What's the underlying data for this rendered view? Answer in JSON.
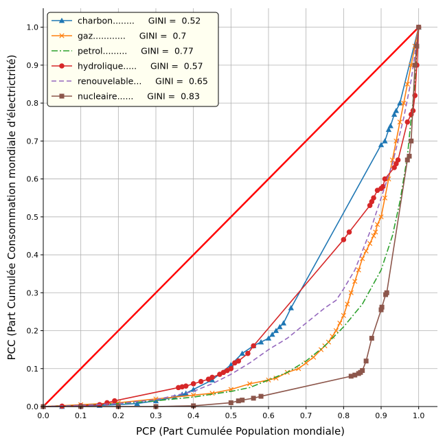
{
  "chart_data": {
    "type": "line",
    "title": "",
    "xlabel": "PCP (Part Cumulée Population mondiale)",
    "ylabel": "PCC (Part Cumulée Consommation mondiale d'électrictrité)",
    "xlim": [
      0.0,
      1.05
    ],
    "ylim": [
      0.0,
      1.05
    ],
    "xticks": [
      "0.0",
      "0.1",
      "0.2",
      "0.3",
      "0.4",
      "0.5",
      "0.6",
      "0.7",
      "0.8",
      "0.9",
      "1.0"
    ],
    "yticks": [
      "0.0",
      "0.1",
      "0.2",
      "0.3",
      "0.4",
      "0.5",
      "0.6",
      "0.7",
      "0.8",
      "0.9",
      "1.0"
    ],
    "grid": true,
    "legend_position": "top-left",
    "equality_line": {
      "x": [
        0.0,
        1.0
      ],
      "y": [
        0.0,
        1.0
      ],
      "color": "#ff0000"
    },
    "series": [
      {
        "name": "charbon........     GINI =  0.52",
        "color": "#1f77b4",
        "marker": "triangle",
        "dash": "",
        "x": [
          0.0,
          0.05,
          0.1,
          0.15,
          0.2,
          0.25,
          0.3,
          0.35,
          0.37,
          0.38,
          0.4,
          0.45,
          0.5,
          0.53,
          0.56,
          0.58,
          0.6,
          0.61,
          0.62,
          0.63,
          0.64,
          0.66,
          0.9,
          0.91,
          0.92,
          0.925,
          0.935,
          0.94,
          0.95,
          1.0
        ],
        "y": [
          0.0,
          0.0,
          0.002,
          0.003,
          0.005,
          0.008,
          0.015,
          0.025,
          0.032,
          0.035,
          0.045,
          0.07,
          0.11,
          0.14,
          0.16,
          0.17,
          0.18,
          0.19,
          0.2,
          0.21,
          0.22,
          0.26,
          0.69,
          0.7,
          0.73,
          0.74,
          0.77,
          0.78,
          0.8,
          1.0
        ]
      },
      {
        "name": "gaz............     GINI =  0.7",
        "color": "#ff7f0e",
        "marker": "x",
        "dash": "",
        "x": [
          0.0,
          0.1,
          0.2,
          0.3,
          0.4,
          0.45,
          0.5,
          0.55,
          0.6,
          0.62,
          0.65,
          0.68,
          0.7,
          0.72,
          0.74,
          0.75,
          0.76,
          0.77,
          0.78,
          0.79,
          0.8,
          0.81,
          0.82,
          0.83,
          0.84,
          0.85,
          0.86,
          0.87,
          0.88,
          0.885,
          0.89,
          0.9,
          0.91,
          0.92,
          0.93,
          0.94,
          0.95,
          0.96,
          0.97,
          0.98,
          0.99,
          1.0
        ],
        "y": [
          0.0,
          0.005,
          0.01,
          0.02,
          0.03,
          0.035,
          0.045,
          0.06,
          0.07,
          0.075,
          0.09,
          0.1,
          0.115,
          0.13,
          0.15,
          0.16,
          0.17,
          0.185,
          0.2,
          0.22,
          0.24,
          0.27,
          0.3,
          0.33,
          0.36,
          0.39,
          0.41,
          0.43,
          0.45,
          0.46,
          0.48,
          0.5,
          0.55,
          0.6,
          0.65,
          0.7,
          0.75,
          0.8,
          0.85,
          0.9,
          0.95,
          1.0
        ]
      },
      {
        "name": "petrol.........     GINI =  0.77",
        "color": "#2ca02c",
        "marker": "",
        "dash": "9,3,2,3",
        "x": [
          0.0,
          0.1,
          0.2,
          0.3,
          0.4,
          0.5,
          0.55,
          0.6,
          0.65,
          0.7,
          0.75,
          0.8,
          0.85,
          0.9,
          0.93,
          0.95,
          0.97,
          0.98,
          0.99,
          1.0
        ],
        "y": [
          0.0,
          0.003,
          0.008,
          0.015,
          0.025,
          0.04,
          0.05,
          0.07,
          0.09,
          0.12,
          0.16,
          0.21,
          0.27,
          0.36,
          0.45,
          0.54,
          0.66,
          0.76,
          0.85,
          1.0
        ]
      },
      {
        "name": "hydrolique.....     GINI =  0.57",
        "color": "#d62728",
        "marker": "circle",
        "dash": "",
        "x": [
          0.0,
          0.05,
          0.1,
          0.15,
          0.17,
          0.19,
          0.36,
          0.37,
          0.38,
          0.4,
          0.42,
          0.44,
          0.45,
          0.47,
          0.48,
          0.49,
          0.5,
          0.51,
          0.52,
          0.545,
          0.56,
          0.8,
          0.815,
          0.87,
          0.875,
          0.88,
          0.89,
          0.9,
          0.905,
          0.91,
          0.935,
          0.94,
          0.945,
          0.97,
          0.98,
          0.985,
          0.99,
          0.995,
          1.0
        ],
        "y": [
          0.0,
          0.001,
          0.002,
          0.005,
          0.01,
          0.015,
          0.05,
          0.052,
          0.054,
          0.06,
          0.066,
          0.072,
          0.077,
          0.085,
          0.09,
          0.095,
          0.1,
          0.115,
          0.12,
          0.14,
          0.16,
          0.44,
          0.46,
          0.53,
          0.54,
          0.55,
          0.57,
          0.575,
          0.58,
          0.6,
          0.63,
          0.64,
          0.65,
          0.75,
          0.77,
          0.78,
          0.82,
          0.9,
          1.0
        ]
      },
      {
        "name": "renouvelable...     GINI =  0.65",
        "color": "#9467bd",
        "marker": "",
        "dash": "7,4",
        "x": [
          0.0,
          0.1,
          0.2,
          0.3,
          0.4,
          0.45,
          0.5,
          0.55,
          0.6,
          0.65,
          0.7,
          0.75,
          0.78,
          0.8,
          0.83,
          0.85,
          0.87,
          0.9,
          0.93,
          0.96,
          0.98,
          1.0
        ],
        "y": [
          0.0,
          0.003,
          0.008,
          0.018,
          0.04,
          0.06,
          0.085,
          0.115,
          0.15,
          0.18,
          0.22,
          0.26,
          0.28,
          0.31,
          0.36,
          0.41,
          0.46,
          0.55,
          0.64,
          0.76,
          0.86,
          1.0
        ]
      },
      {
        "name": "nucleaire......     GINI =  0.83",
        "color": "#8c564b",
        "marker": "square",
        "dash": "",
        "x": [
          0.0,
          0.1,
          0.2,
          0.3,
          0.4,
          0.5,
          0.52,
          0.53,
          0.56,
          0.58,
          0.82,
          0.83,
          0.84,
          0.845,
          0.85,
          0.86,
          0.875,
          0.9,
          0.902,
          0.912,
          0.915,
          0.97,
          0.975,
          0.98,
          0.99,
          0.995,
          1.0
        ],
        "y": [
          0.0,
          0.0,
          0.0,
          0.0,
          0.002,
          0.01,
          0.015,
          0.017,
          0.022,
          0.027,
          0.08,
          0.083,
          0.087,
          0.09,
          0.095,
          0.12,
          0.18,
          0.255,
          0.262,
          0.295,
          0.3,
          0.65,
          0.66,
          0.7,
          0.9,
          0.95,
          1.0
        ]
      }
    ]
  }
}
